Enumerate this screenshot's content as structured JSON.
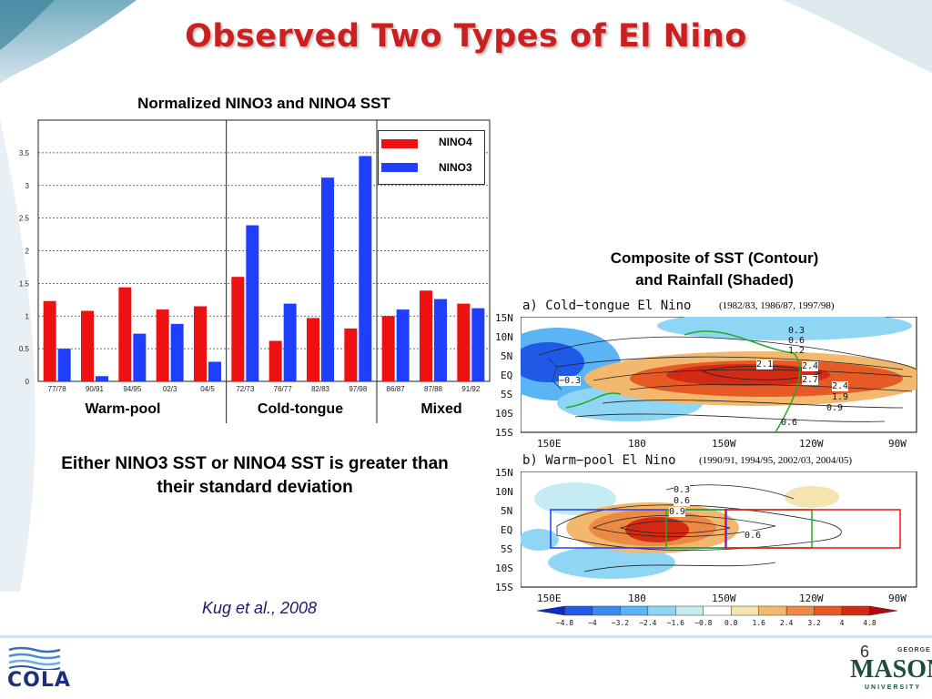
{
  "slide": {
    "title": "Observed Two Types of El Nino",
    "page_number": "6",
    "caption": "Either NINO3 SST or NINO4 SST is greater than their standard deviation",
    "citation": "Kug et al., 2008",
    "composite_title_line1": "Composite of SST (Contour)",
    "composite_title_line2": "and Rainfall (Shaded)",
    "logos": {
      "cola": "COLA",
      "gmu_top": "GEORGE",
      "gmu_main": "MASON",
      "gmu_bottom": "UNIVERSITY"
    }
  },
  "chart_data": [
    {
      "type": "bar",
      "title": "Normalized NINO3 and NINO4 SST",
      "categories": [
        "77/78",
        "90/91",
        "94/95",
        "02/3",
        "04/5",
        "72/73",
        "76/77",
        "82/83",
        "97/98",
        "86/87",
        "87/88",
        "91/92"
      ],
      "series": [
        {
          "name": "NINO4",
          "color": "#ee1111",
          "values": [
            1.23,
            1.08,
            1.44,
            1.1,
            1.15,
            1.6,
            0.62,
            0.97,
            0.81,
            1.0,
            1.39,
            1.19
          ]
        },
        {
          "name": "NINO3",
          "color": "#1f3fff",
          "values": [
            0.5,
            0.08,
            0.73,
            0.88,
            0.3,
            2.39,
            1.19,
            3.12,
            3.45,
            1.1,
            1.26,
            1.12
          ]
        }
      ],
      "groups": [
        {
          "label": "Warm-pool",
          "start": 0,
          "end": 4
        },
        {
          "label": "Cold-tongue",
          "start": 5,
          "end": 8
        },
        {
          "label": "Mixed",
          "start": 9,
          "end": 11
        }
      ],
      "yticks": [
        "0",
        "0.5",
        "1",
        "1.5",
        "2",
        "2.5",
        "3",
        "3.5"
      ],
      "ylim": [
        0,
        4
      ],
      "grid": true,
      "legend_position": "top-right"
    },
    {
      "type": "map",
      "panel_title": "a)  Cold−tongue  El Nino",
      "years": "(1982/83, 1986/87, 1997/98)",
      "lat_labels": [
        "15N",
        "10N",
        "5N",
        "EQ",
        "5S",
        "10S",
        "15S"
      ],
      "lon_labels": [
        "150E",
        "180",
        "150W",
        "120W",
        "90W"
      ],
      "contour_labels": [
        "0.3",
        "0.6",
        "1.2",
        "2.1",
        "2.4",
        "2.7",
        "2.4",
        "1.9",
        "0.9",
        "0.6",
        "−0.3"
      ]
    },
    {
      "type": "map",
      "panel_title": "b)  Warm−pool  El Nino",
      "years": "(1990/91, 1994/95, 2002/03, 2004/05)",
      "lat_labels": [
        "15N",
        "10N",
        "5N",
        "EQ",
        "5S",
        "10S",
        "15S"
      ],
      "lon_labels": [
        "150E",
        "180",
        "150W",
        "120W",
        "90W"
      ],
      "contour_labels": [
        "0.3",
        "0.6",
        "0.9",
        "0.6"
      ]
    },
    {
      "type": "colorbar",
      "ticks": [
        "−4.8",
        "−4",
        "−3.2",
        "−2.4",
        "−1.6",
        "−0.8",
        "0.8",
        "1.6",
        "2.4",
        "3.2",
        "4",
        "4.8"
      ],
      "colors": [
        "#0a2bc8",
        "#1e5ae6",
        "#3c8cf0",
        "#5ab4f5",
        "#8fd6f5",
        "#c5ecf2",
        "#ffffff",
        "#f5e4b0",
        "#f2b86e",
        "#ec8a45",
        "#e65a25",
        "#d22a14",
        "#b40a0a"
      ]
    }
  ]
}
